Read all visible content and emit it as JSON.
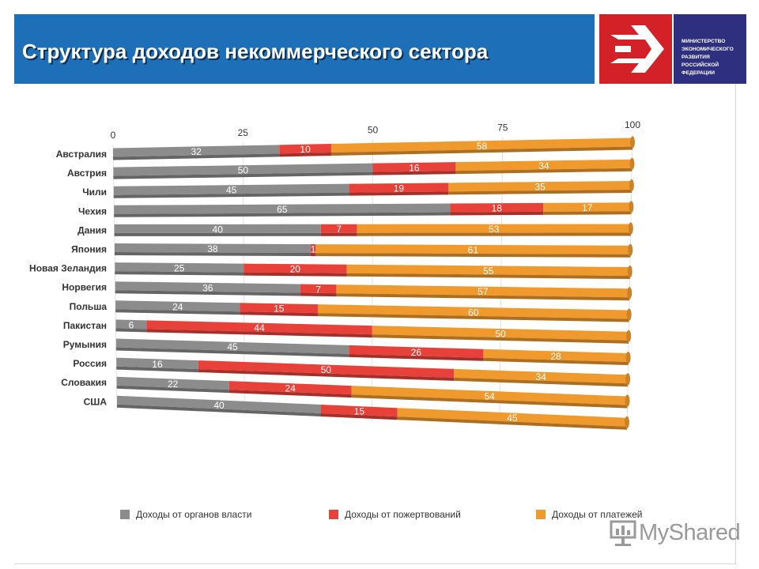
{
  "title": "Структура доходов некоммерческого сектора",
  "logo": {
    "text": "МИНИСТЕРСТВО ЭКОНОМИЧЕСКОГО РАЗВИТИЯ РОССИЙСКОЙ ФЕДЕРАЦИИ",
    "icon": "arrow-logo-icon",
    "red": "#d42027",
    "blue": "#2e2f7f"
  },
  "watermark": {
    "text": "MyShared",
    "icon": "presentation-board-icon"
  },
  "chart_data": {
    "type": "bar",
    "orientation": "horizontal",
    "stacked": true,
    "xlim": [
      0,
      100
    ],
    "x_ticks": [
      "0",
      "25",
      "50",
      "75",
      "100"
    ],
    "grid": true,
    "legend_position": "bottom",
    "categories": [
      "Австралия",
      "Австрия",
      "Чили",
      "Чехия",
      "Дания",
      "Япония",
      "Новая Зеландия",
      "Норвегия",
      "Польша",
      "Пакистан",
      "Румыния",
      "Россия",
      "Словакия",
      "США"
    ],
    "series": [
      {
        "name": "Доходы от органов власти",
        "color": "#8c8c8c",
        "values": [
          32,
          50,
          45,
          65,
          40,
          38,
          25,
          36,
          24,
          6,
          45,
          16,
          22,
          40
        ]
      },
      {
        "name": "Доходы от пожертвований",
        "color": "#e8413a",
        "values": [
          10,
          16,
          19,
          18,
          7,
          1,
          20,
          7,
          15,
          44,
          26,
          50,
          24,
          15
        ]
      },
      {
        "name": "Доходы от платежей",
        "color": "#f0992d",
        "values": [
          58,
          34,
          35,
          17,
          53,
          61,
          55,
          57,
          60,
          50,
          28,
          34,
          54,
          45
        ]
      }
    ]
  }
}
